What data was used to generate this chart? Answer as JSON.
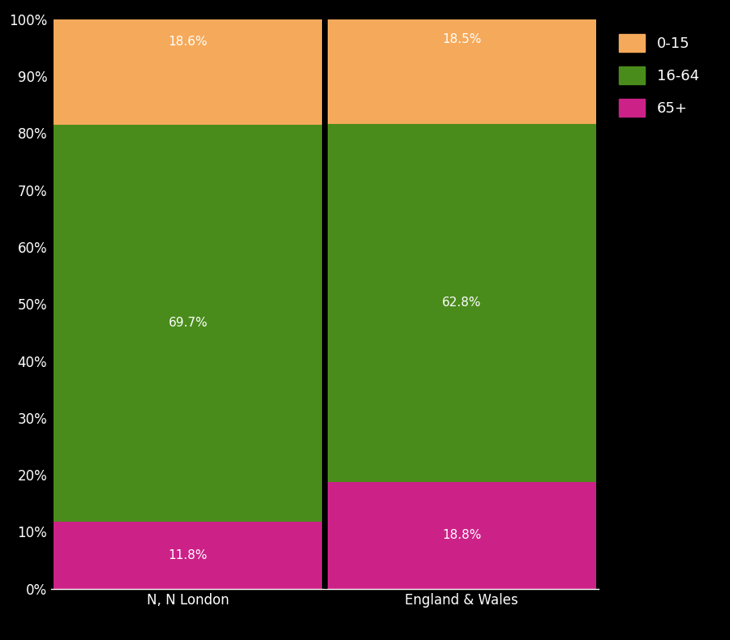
{
  "categories": [
    "N, N London",
    "England & Wales"
  ],
  "segments": {
    "65+": [
      11.8,
      18.8
    ],
    "16-64": [
      69.7,
      62.8
    ],
    "0-15": [
      18.6,
      18.5
    ]
  },
  "colors": {
    "65+": "#cc2288",
    "16-64": "#4a8c1c",
    "0-15": "#f5a95a"
  },
  "labels": {
    "65+": [
      "11.8%",
      "18.8%"
    ],
    "16-64": [
      "69.7%",
      "62.8%"
    ],
    "0-15": [
      "18.6%",
      "18.5%"
    ]
  },
  "label_y_positions": {
    "65+": [
      5.9,
      9.4
    ],
    "16-64": [
      46.65,
      50.2
    ],
    "0-15": [
      96.0,
      96.5
    ]
  },
  "background_color": "#000000",
  "text_color": "#ffffff",
  "bar_width": 0.98,
  "ylim": [
    0,
    100
  ],
  "yticks": [
    0,
    10,
    20,
    30,
    40,
    50,
    60,
    70,
    80,
    90,
    100
  ],
  "ytick_labels": [
    "0%",
    "10%",
    "20%",
    "30%",
    "40%",
    "50%",
    "60%",
    "70%",
    "80%",
    "90%",
    "100%"
  ],
  "legend_order": [
    "0-15",
    "16-64",
    "65+"
  ],
  "tick_color": "#ffffff",
  "axis_color": "#ffffff",
  "separator_color": "#000000",
  "figsize": [
    9.0,
    7.9
  ],
  "dpi": 100
}
